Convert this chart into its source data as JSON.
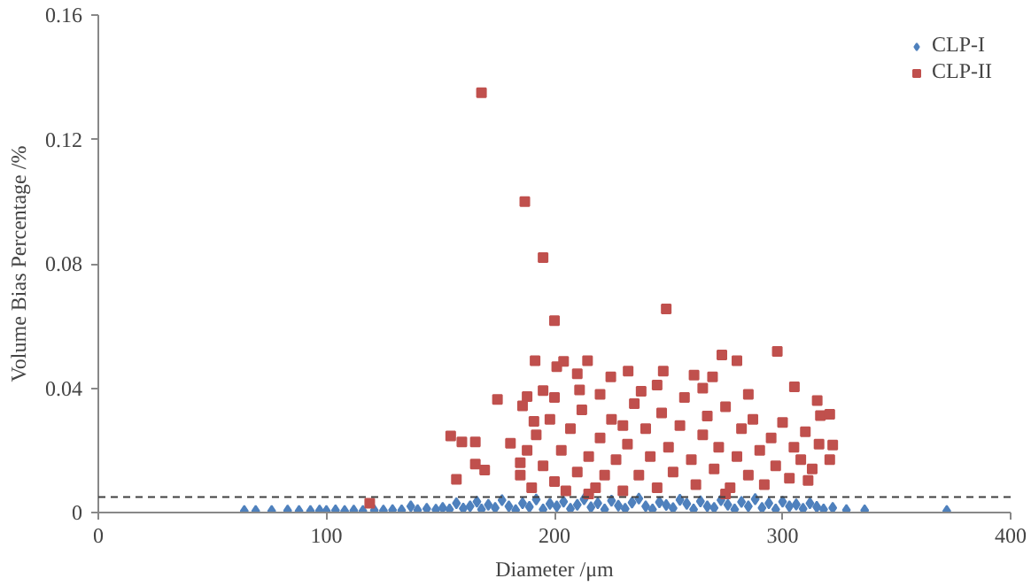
{
  "chart_data": {
    "type": "scatter",
    "xlabel": "Diameter /μm",
    "ylabel": "Volume Bias Percentage /%",
    "xlim": [
      0,
      400
    ],
    "xticks": [
      0,
      100,
      200,
      300,
      400
    ],
    "ylim": [
      0,
      0.16
    ],
    "yticks": [
      0,
      0.04,
      0.08,
      0.12,
      0.16
    ],
    "grid": false,
    "legend": "top right",
    "ref_lines": [
      {
        "axis": "y",
        "value": 0.005,
        "color": "#404040",
        "line_style": "dashed"
      }
    ],
    "series": [
      {
        "name": "CLP-I",
        "color": "#4f81bd",
        "marker": "diamond",
        "x": [
          64,
          69,
          76,
          83,
          88,
          93,
          97,
          100,
          104,
          108,
          112,
          116,
          121,
          125,
          129,
          133,
          137,
          140,
          144,
          148,
          151,
          154,
          157,
          160,
          163,
          166,
          168,
          171,
          174,
          177,
          180,
          183,
          186,
          189,
          192,
          195,
          198,
          201,
          204,
          207,
          210,
          213,
          216,
          219,
          222,
          225,
          228,
          231,
          234,
          237,
          240,
          243,
          246,
          249,
          252,
          255,
          258,
          261,
          264,
          267,
          270,
          273,
          276,
          279,
          282,
          285,
          288,
          291,
          294,
          297,
          300,
          303,
          306,
          309,
          312,
          315,
          318,
          322,
          328,
          336,
          372
        ],
        "values": [
          0.0005,
          0.0005,
          0.0005,
          0.0006,
          0.0005,
          0.0005,
          0.0006,
          0.0005,
          0.0007,
          0.0005,
          0.0006,
          0.0005,
          0.0007,
          0.0006,
          0.0008,
          0.0007,
          0.002,
          0.0008,
          0.0012,
          0.0009,
          0.0015,
          0.001,
          0.003,
          0.0013,
          0.002,
          0.0035,
          0.001,
          0.0025,
          0.0015,
          0.004,
          0.002,
          0.0008,
          0.003,
          0.0018,
          0.0042,
          0.001,
          0.0028,
          0.002,
          0.0035,
          0.0012,
          0.0025,
          0.0043,
          0.0017,
          0.003,
          0.001,
          0.0038,
          0.0022,
          0.0012,
          0.0032,
          0.0045,
          0.002,
          0.001,
          0.0033,
          0.0024,
          0.0014,
          0.0041,
          0.0028,
          0.001,
          0.0036,
          0.002,
          0.0015,
          0.004,
          0.0025,
          0.001,
          0.0034,
          0.002,
          0.0043,
          0.0015,
          0.003,
          0.001,
          0.0035,
          0.002,
          0.0026,
          0.0012,
          0.003,
          0.0018,
          0.001,
          0.0015,
          0.0008,
          0.0007,
          0.0005
        ]
      },
      {
        "name": "CLP-II",
        "color": "#c0504d",
        "marker": "square",
        "x": [
          168,
          187,
          195,
          249,
          200,
          191.5,
          201,
          204,
          214.5,
          210,
          175,
          188,
          195,
          211,
          186,
          154.5,
          159.4,
          165.3,
          180.7,
          165.3,
          169.4,
          157,
          119,
          191,
          185,
          273.4,
          280,
          297.7,
          247.7,
          224.7,
          232.3,
          261.2,
          269.3,
          305.2,
          315.2,
          316.6,
          320.7,
          322,
          320.7,
          311.2,
          238,
          185,
          188,
          190,
          192,
          195,
          198,
          200,
          203,
          205,
          207,
          210,
          212,
          215,
          218,
          220,
          222,
          225,
          227,
          230,
          232,
          235,
          237,
          240,
          242,
          245,
          247,
          250,
          252,
          255,
          257,
          260,
          262,
          265,
          267,
          270,
          272,
          275,
          277,
          280,
          282,
          285,
          287,
          290,
          292,
          295,
          297,
          300,
          303,
          305,
          308,
          310,
          313,
          316,
          200,
          220,
          245,
          265,
          285,
          230,
          215,
          275
        ],
        "values": [
          0.135,
          0.1,
          0.082,
          0.0655,
          0.0617,
          0.0488,
          0.0469,
          0.0486,
          0.0488,
          0.0446,
          0.0364,
          0.0373,
          0.0392,
          0.0394,
          0.0343,
          0.0246,
          0.0227,
          0.0227,
          0.0223,
          0.0156,
          0.0137,
          0.0107,
          0.003,
          0.0293,
          0.016,
          0.0507,
          0.0488,
          0.0518,
          0.0455,
          0.0436,
          0.0455,
          0.0442,
          0.0436,
          0.0404,
          0.036,
          0.0312,
          0.0316,
          0.0217,
          0.017,
          0.0103,
          0.039,
          0.012,
          0.02,
          0.008,
          0.025,
          0.015,
          0.03,
          0.01,
          0.02,
          0.007,
          0.027,
          0.013,
          0.033,
          0.018,
          0.008,
          0.024,
          0.012,
          0.03,
          0.017,
          0.007,
          0.022,
          0.035,
          0.012,
          0.027,
          0.018,
          0.008,
          0.032,
          0.021,
          0.013,
          0.028,
          0.037,
          0.017,
          0.009,
          0.025,
          0.031,
          0.014,
          0.021,
          0.034,
          0.008,
          0.018,
          0.027,
          0.012,
          0.03,
          0.02,
          0.009,
          0.024,
          0.015,
          0.029,
          0.011,
          0.021,
          0.017,
          0.026,
          0.014,
          0.022,
          0.037,
          0.038,
          0.041,
          0.04,
          0.038,
          0.028,
          0.006,
          0.006
        ]
      }
    ]
  }
}
